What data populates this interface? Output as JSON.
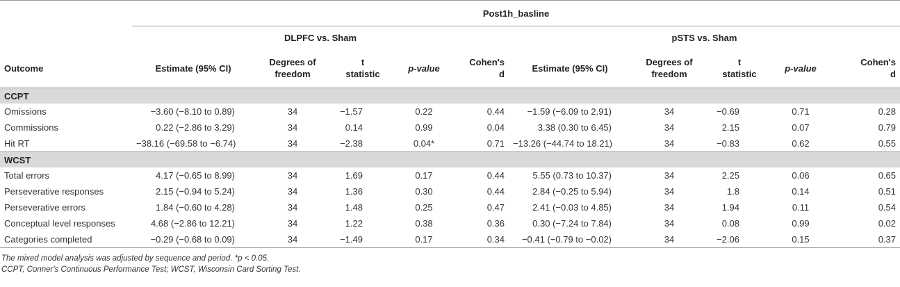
{
  "header": {
    "group_title": "Post1h_basline",
    "comparisons": [
      "DLPFC vs. Sham",
      "pSTS vs. Sham"
    ],
    "outcome_label": "Outcome",
    "columns": {
      "estimate": "Estimate (95% CI)",
      "df_line1": "Degrees of",
      "df_line2": "freedom",
      "t_line1": "t",
      "t_line2": "statistic",
      "p": "p-value",
      "d_line1": "Cohen's",
      "d_line2": "d"
    }
  },
  "sections": [
    {
      "name": "CCPT",
      "rows": [
        {
          "outcome": "Omissions",
          "dl_est": "−3.60 (−8.10 to 0.89)",
          "dl_df": "34",
          "dl_t": "−1.57",
          "dl_p": "0.22",
          "dl_d": "0.44",
          "ps_est": "−1.59 (−6.09 to 2.91)",
          "ps_df": "34",
          "ps_t": "−0.69",
          "ps_p": "0.71",
          "ps_d": "0.28"
        },
        {
          "outcome": "Commissions",
          "dl_est": "0.22 (−2.86 to 3.29)",
          "dl_df": "34",
          "dl_t": "0.14",
          "dl_p": "0.99",
          "dl_d": "0.04",
          "ps_est": "3.38 (0.30 to 6.45)",
          "ps_df": "34",
          "ps_t": "2.15",
          "ps_p": "0.07",
          "ps_d": "0.79"
        },
        {
          "outcome": "Hit RT",
          "dl_est": "−38.16 (−69.58 to −6.74)",
          "dl_df": "34",
          "dl_t": "−2.38",
          "dl_p": "0.04*",
          "dl_d": "0.71",
          "ps_est": "−13.26 (−44.74 to 18.21)",
          "ps_df": "34",
          "ps_t": "−0.83",
          "ps_p": "0.62",
          "ps_d": "0.55"
        }
      ]
    },
    {
      "name": "WCST",
      "rows": [
        {
          "outcome": "Total errors",
          "dl_est": "4.17 (−0.65 to 8.99)",
          "dl_df": "34",
          "dl_t": "1.69",
          "dl_p": "0.17",
          "dl_d": "0.44",
          "ps_est": "5.55 (0.73 to 10.37)",
          "ps_df": "34",
          "ps_t": "2.25",
          "ps_p": "0.06",
          "ps_d": "0.65"
        },
        {
          "outcome": "Perseverative responses",
          "dl_est": "2.15 (−0.94 to 5.24)",
          "dl_df": "34",
          "dl_t": "1.36",
          "dl_p": "0.30",
          "dl_d": "0.44",
          "ps_est": "2.84 (−0.25 to 5.94)",
          "ps_df": "34",
          "ps_t": "1.8",
          "ps_p": "0.14",
          "ps_d": "0.51"
        },
        {
          "outcome": "Perseverative errors",
          "dl_est": "1.84 (−0.60 to 4.28)",
          "dl_df": "34",
          "dl_t": "1.48",
          "dl_p": "0.25",
          "dl_d": "0.47",
          "ps_est": "2.41 (−0.03 to 4.85)",
          "ps_df": "34",
          "ps_t": "1.94",
          "ps_p": "0.11",
          "ps_d": "0.54"
        },
        {
          "outcome": "Conceptual level responses",
          "dl_est": "4.68 (−2.86 to 12.21)",
          "dl_df": "34",
          "dl_t": "1.22",
          "dl_p": "0.38",
          "dl_d": "0.36",
          "ps_est": "0.30 (−7.24 to 7.84)",
          "ps_df": "34",
          "ps_t": "0.08",
          "ps_p": "0.99",
          "ps_d": "0.02"
        },
        {
          "outcome": "Categories completed",
          "dl_est": "−0.29 (−0.68 to 0.09)",
          "dl_df": "34",
          "dl_t": "−1.49",
          "dl_p": "0.17",
          "dl_d": "0.34",
          "ps_est": "−0.41 (−0.79 to −0.02)",
          "ps_df": "34",
          "ps_t": "−2.06",
          "ps_p": "0.15",
          "ps_d": "0.37"
        }
      ]
    }
  ],
  "footnotes": [
    "The mixed model analysis was adjusted by sequence and period. *p < 0.05.",
    "CCPT, Conner's Continuous Performance Test; WCST, Wisconsin Card Sorting Test."
  ]
}
